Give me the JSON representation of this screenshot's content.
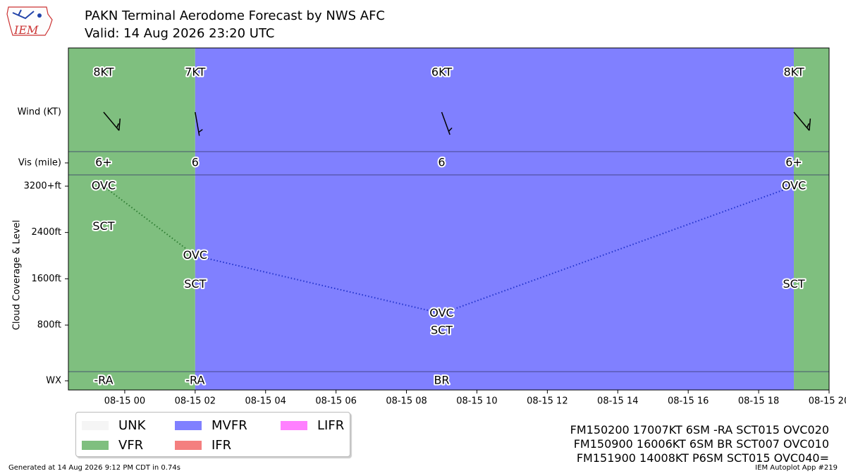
{
  "header": {
    "title": "PAKN Terminal Aerodome Forecast by NWS AFC",
    "valid": "Valid: 14 Aug 2026 23:20 UTC",
    "logo_text": "IEM"
  },
  "footer": {
    "generated": "Generated at 14 Aug 2026 9:12 PM CDT in 0.74s",
    "app": "IEM Autoplot App #219"
  },
  "taf_lines": [
    "FM150200 17007KT 6SM -RA SCT015 OVC020",
    "FM150900 16006KT 6SM BR SCT007 OVC010",
    "FM151900 14008KT P6SM SCT015 OVC040="
  ],
  "legend": [
    {
      "label": "UNK",
      "color": "#f5f5f5"
    },
    {
      "label": "VFR",
      "color": "#7fbf7f"
    },
    {
      "label": "MVFR",
      "color": "#8080ff"
    },
    {
      "label": "IFR",
      "color": "#f47f7f"
    },
    {
      "label": "LIFR",
      "color": "#ff80ff"
    }
  ],
  "chart_data": {
    "type": "timeline",
    "ylabel": "Cloud Coverage & Level",
    "row_labels": {
      "wind": "Wind (KT)",
      "vis": "Vis (mile)",
      "wx": "WX"
    },
    "y_ticks": [
      {
        "value": 800,
        "label": "800ft"
      },
      {
        "value": 1600,
        "label": "1600ft"
      },
      {
        "value": 2400,
        "label": "2400ft"
      },
      {
        "value": 3200,
        "label": "3200+ft"
      }
    ],
    "x_ticks": [
      "08-15 00",
      "08-15 02",
      "08-15 04",
      "08-15 06",
      "08-15 08",
      "08-15 10",
      "08-15 12",
      "08-15 14",
      "08-15 16",
      "08-15 18",
      "08-15 20"
    ],
    "x_range_hours": [
      -1.6,
      20.0
    ],
    "category_colors": {
      "VFR": "#7fbf7f",
      "MVFR": "#8080ff"
    },
    "periods": [
      {
        "start": -1.6,
        "end": 2.0,
        "category": "VFR"
      },
      {
        "start": 2.0,
        "end": 19.0,
        "category": "MVFR"
      },
      {
        "start": 19.0,
        "end": 20.0,
        "category": "VFR"
      }
    ],
    "forecasts": [
      {
        "hour": -0.6,
        "wind_speed": 8,
        "wind_dir": 140,
        "wind_label": "8KT",
        "vis": "6+",
        "wx": "-RA",
        "clouds": [
          {
            "cover": "SCT",
            "level": 2500
          },
          {
            "cover": "OVC",
            "level": 3200
          }
        ]
      },
      {
        "hour": 2.0,
        "wind_speed": 7,
        "wind_dir": 170,
        "wind_label": "7KT",
        "vis": "6",
        "wx": "-RA",
        "clouds": [
          {
            "cover": "SCT",
            "level": 1500
          },
          {
            "cover": "OVC",
            "level": 2000
          }
        ]
      },
      {
        "hour": 9.0,
        "wind_speed": 6,
        "wind_dir": 160,
        "wind_label": "6KT",
        "vis": "6",
        "wx": "BR",
        "clouds": [
          {
            "cover": "SCT",
            "level": 700
          },
          {
            "cover": "OVC",
            "level": 1000
          }
        ]
      },
      {
        "hour": 19.0,
        "wind_speed": 8,
        "wind_dir": 140,
        "wind_label": "8KT",
        "vis": "6+",
        "wx": "",
        "clouds": [
          {
            "cover": "SCT",
            "level": 1500
          },
          {
            "cover": "OVC",
            "level": 3200
          }
        ]
      }
    ]
  }
}
